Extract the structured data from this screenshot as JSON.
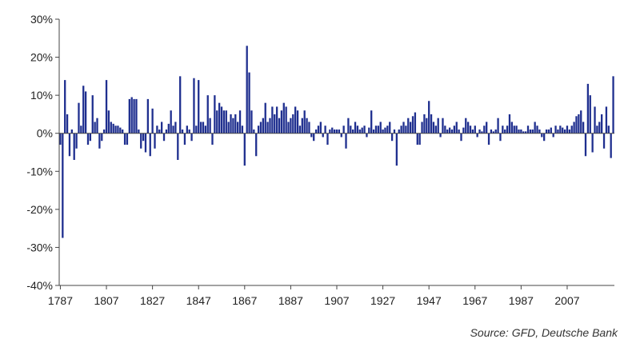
{
  "chart_data": {
    "type": "bar",
    "title": "",
    "xlabel": "",
    "ylabel": "",
    "ylim": [
      -0.4,
      0.3
    ],
    "y_ticks": [
      0.3,
      0.2,
      0.1,
      0.0,
      -0.1,
      -0.2,
      -0.3,
      -0.4
    ],
    "y_tick_labels": [
      "30%",
      "20%",
      "10%",
      "0%",
      "-10%",
      "-20%",
      "-30%",
      "-40%"
    ],
    "x_ticks": [
      1787,
      1807,
      1827,
      1847,
      1867,
      1887,
      1907,
      1927,
      1947,
      1967,
      1987,
      2007
    ],
    "x_tick_labels": [
      "1787",
      "1807",
      "1827",
      "1847",
      "1867",
      "1887",
      "1907",
      "1927",
      "1947",
      "1967",
      "1987",
      "2007"
    ],
    "xlim": [
      1786.5,
      2027.5
    ],
    "bar_color": "#1f2f8f",
    "grid": false,
    "series": [
      {
        "x": [
          1787,
          1788,
          1789,
          1790,
          1791,
          1792,
          1793,
          1794,
          1795,
          1796,
          1797,
          1798,
          1799,
          1800,
          1801,
          1802,
          1803,
          1804,
          1805,
          1806,
          1807,
          1808,
          1809,
          1810,
          1811,
          1812,
          1813,
          1814,
          1815,
          1816,
          1817,
          1818,
          1819,
          1820,
          1821,
          1822,
          1823,
          1824,
          1825,
          1826,
          1827,
          1828,
          1829,
          1830,
          1831,
          1832,
          1833,
          1834,
          1835,
          1836,
          1837,
          1838,
          1839,
          1840,
          1841,
          1842,
          1843,
          1844,
          1845,
          1846,
          1847,
          1848,
          1849,
          1850,
          1851,
          1852,
          1853,
          1854,
          1855,
          1856,
          1857,
          1858,
          1859,
          1860,
          1861,
          1862,
          1863,
          1864,
          1865,
          1866,
          1867,
          1868,
          1869,
          1870,
          1871,
          1872,
          1873,
          1874,
          1875,
          1876,
          1877,
          1878,
          1879,
          1880,
          1881,
          1882,
          1883,
          1884,
          1885,
          1886,
          1887,
          1888,
          1889,
          1890,
          1891,
          1892,
          1893,
          1894,
          1895,
          1896,
          1897,
          1898,
          1899,
          1900,
          1901,
          1902,
          1903,
          1904,
          1905,
          1906,
          1907,
          1908,
          1909,
          1910,
          1911,
          1912,
          1913,
          1914,
          1915,
          1916,
          1917,
          1918,
          1919,
          1920,
          1921,
          1922,
          1923,
          1924,
          1925,
          1926,
          1927,
          1928,
          1929,
          1930,
          1931,
          1932,
          1933,
          1934,
          1935,
          1936,
          1937,
          1938,
          1939,
          1940,
          1941,
          1942,
          1943,
          1944,
          1945,
          1946,
          1947,
          1948,
          1949,
          1950,
          1951,
          1952,
          1953,
          1954,
          1955,
          1956,
          1957,
          1958,
          1959,
          1960,
          1961,
          1962,
          1963,
          1964,
          1965,
          1966,
          1967,
          1968,
          1969,
          1970,
          1971,
          1972,
          1973,
          1974,
          1975,
          1976,
          1977,
          1978,
          1979,
          1980,
          1981,
          1982,
          1983,
          1984,
          1985,
          1986,
          1987,
          1988,
          1989,
          1990,
          1991,
          1992,
          1993,
          1994,
          1995,
          1996,
          1997,
          1998,
          1999,
          2000,
          2001,
          2002,
          2003,
          2004,
          2005,
          2006,
          2007,
          2008,
          2009,
          2010,
          2011,
          2012,
          2013,
          2014,
          2015,
          2016,
          2017,
          2018,
          2019,
          2020,
          2021,
          2022,
          2023,
          2024,
          2025,
          2026,
          2027
        ],
        "values": [
          -0.03,
          -0.275,
          0.14,
          0.05,
          -0.06,
          0.01,
          -0.07,
          -0.04,
          0.08,
          0.02,
          0.125,
          0.11,
          -0.03,
          -0.02,
          0.1,
          0.03,
          0.04,
          -0.04,
          -0.02,
          0.01,
          0.14,
          0.06,
          0.03,
          0.025,
          0.02,
          0.02,
          0.015,
          0.01,
          -0.03,
          -0.03,
          0.09,
          0.095,
          0.09,
          0.09,
          0.01,
          -0.04,
          -0.02,
          -0.05,
          0.09,
          -0.06,
          0.065,
          -0.04,
          0.02,
          0.01,
          0.03,
          -0.02,
          0.01,
          0.025,
          0.06,
          0.02,
          0.03,
          -0.07,
          0.15,
          0.01,
          -0.03,
          0.02,
          0.01,
          -0.02,
          0.145,
          0.02,
          0.14,
          0.03,
          0.03,
          0.02,
          0.1,
          0.04,
          -0.03,
          0.1,
          0.06,
          0.08,
          0.07,
          0.06,
          0.06,
          0.03,
          0.05,
          0.04,
          0.05,
          0.03,
          0.06,
          0.02,
          -0.085,
          0.23,
          0.16,
          0.06,
          0.01,
          -0.06,
          0.02,
          0.03,
          0.04,
          0.08,
          0.03,
          0.04,
          0.07,
          0.05,
          0.07,
          0.04,
          0.06,
          0.08,
          0.07,
          0.03,
          0.04,
          0.05,
          0.07,
          0.06,
          0.02,
          0.04,
          0.06,
          0.04,
          0.03,
          -0.01,
          -0.02,
          0.01,
          0.02,
          0.03,
          -0.01,
          0.02,
          -0.03,
          0.01,
          0.015,
          0.01,
          0.01,
          0.01,
          -0.01,
          0.02,
          -0.04,
          0.04,
          0.02,
          0.01,
          0.03,
          0.02,
          0.01,
          0.015,
          0.02,
          -0.01,
          0.015,
          0.06,
          0.01,
          0.02,
          0.02,
          0.03,
          0.01,
          0.015,
          0.02,
          0.03,
          -0.02,
          0.01,
          -0.085,
          0.01,
          0.02,
          0.03,
          0.02,
          0.04,
          0.03,
          0.045,
          0.055,
          -0.03,
          -0.03,
          0.03,
          0.05,
          0.04,
          0.085,
          0.05,
          0.03,
          0.02,
          0.04,
          -0.01,
          0.04,
          0.02,
          0.01,
          0.015,
          0.01,
          0.02,
          0.03,
          0.01,
          -0.02,
          0.015,
          0.04,
          0.03,
          0.02,
          0.01,
          0.02,
          -0.01,
          0.01,
          0.005,
          0.02,
          0.03,
          -0.03,
          0.01,
          0.005,
          0.01,
          0.04,
          -0.02,
          0.02,
          0.01,
          0.02,
          0.05,
          0.03,
          0.02,
          0.02,
          0.01,
          0.01,
          0.005,
          0.005,
          0.02,
          0.01,
          0.01,
          0.03,
          0.02,
          0.01,
          -0.01,
          -0.02,
          0.01,
          0.01,
          0.015,
          -0.01,
          0.02,
          0.01,
          0.02,
          0.015,
          0.01,
          0.02,
          0.01,
          0.02,
          0.03,
          0.045,
          0.05,
          0.06,
          0.03,
          -0.06,
          0.13,
          0.1,
          -0.05,
          0.07,
          0.02,
          0.03,
          0.05,
          -0.04,
          0.07,
          0.02,
          -0.065,
          0.15
        ]
      }
    ]
  },
  "source_note": "Source: GFD, Deutsche Bank"
}
